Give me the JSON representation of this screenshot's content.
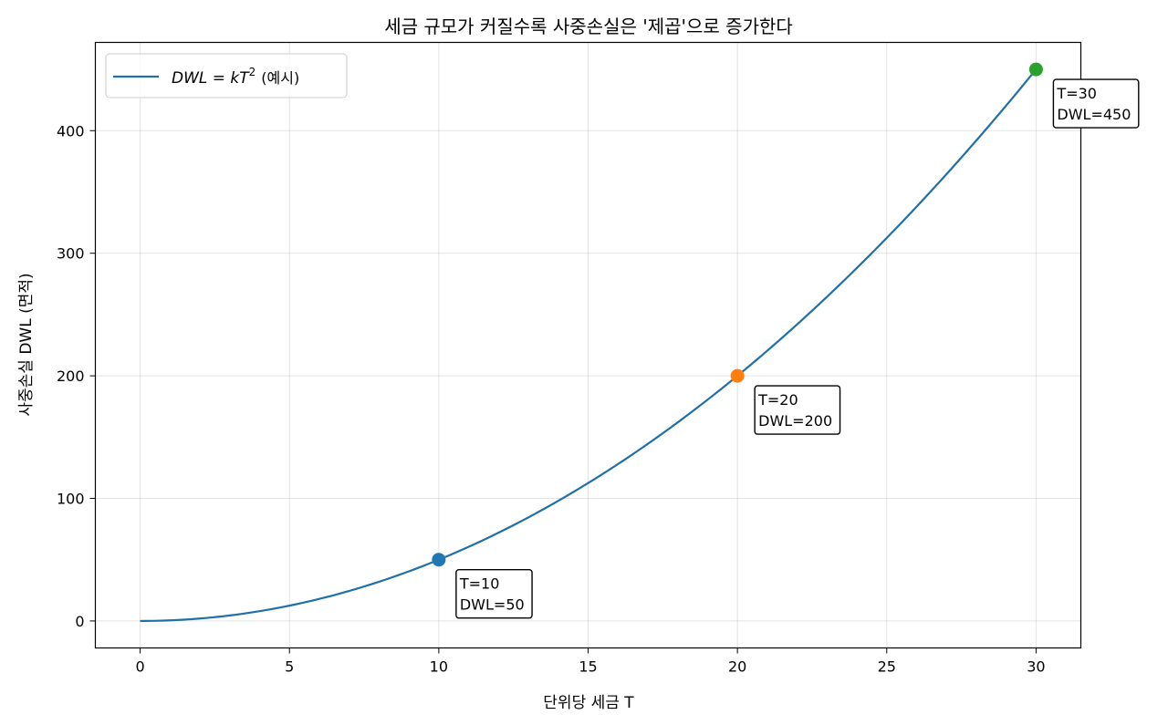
{
  "chart_data": {
    "type": "line",
    "title": "세금 규모가 커질수록 사중손실은 '제곱'으로 증가한다",
    "xlabel": "단위당 세금 T",
    "ylabel": "사중손실 DWL (면적)",
    "xlim": [
      -1.5,
      31.5
    ],
    "ylim": [
      -22,
      472
    ],
    "xticks": [
      0,
      5,
      10,
      15,
      20,
      25,
      30
    ],
    "yticks": [
      0,
      100,
      200,
      300,
      400
    ],
    "grid": true,
    "legend": {
      "placement": "top-left",
      "label_math": "DWL = kT",
      "label_exp": "2",
      "label_suffix": "(예시)"
    },
    "series": [
      {
        "name": "DWL = kT^2 (예시)",
        "formula_k": 0.5,
        "x_range": [
          0,
          30
        ],
        "color": "#1f6fa8"
      }
    ],
    "points": [
      {
        "x": 10,
        "y": 50,
        "color": "#1f77b4",
        "label_line1": "T=10",
        "label_line2": "DWL=50"
      },
      {
        "x": 20,
        "y": 200,
        "color": "#ff7f0e",
        "label_line1": "T=20",
        "label_line2": "DWL=200"
      },
      {
        "x": 30,
        "y": 450,
        "color": "#2ca02c",
        "label_line1": "T=30",
        "label_line2": "DWL=450"
      }
    ]
  }
}
